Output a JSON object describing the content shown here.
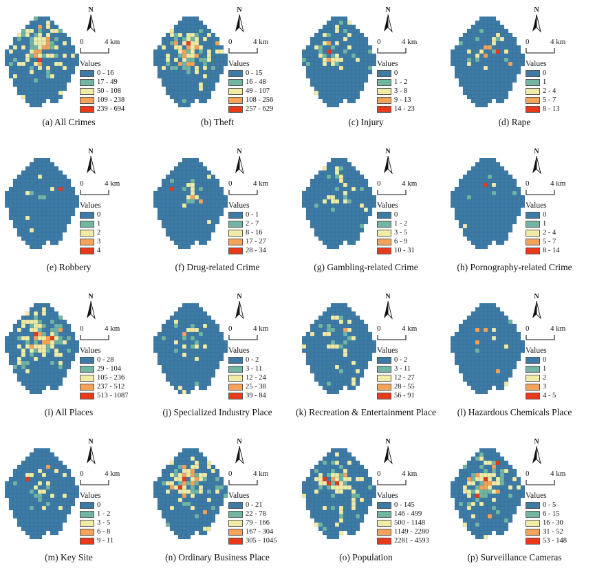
{
  "figure": {
    "legend_title": "Values",
    "north_label": "N",
    "scale": {
      "start": "0",
      "end": "4 km"
    },
    "colors": {
      "classes": [
        "#3d7aa5",
        "#72b5a3",
        "#f0eca5",
        "#f5a358",
        "#e8391b"
      ],
      "grid_line": "#245a82",
      "text": "#111111"
    }
  },
  "panels": [
    {
      "id": "a",
      "caption": "(a) All Crimes",
      "legend": [
        "0 - 16",
        "17 - 49",
        "50 - 108",
        "109 - 238",
        "239 - 694"
      ],
      "pattern": {
        "seed": 101,
        "density": 0.95,
        "spread": 3.4,
        "scatter": 0.05
      }
    },
    {
      "id": "b",
      "caption": "(b) Theft",
      "legend": [
        "0 - 15",
        "16 - 48",
        "49 - 107",
        "108 - 256",
        "257 - 629"
      ],
      "pattern": {
        "seed": 102,
        "density": 0.95,
        "spread": 3.2,
        "scatter": 0.04
      }
    },
    {
      "id": "c",
      "caption": "(c) Injury",
      "legend": [
        "0",
        "1 - 2",
        "3 - 8",
        "9 - 13",
        "14 - 23"
      ],
      "pattern": {
        "seed": 103,
        "density": 0.5,
        "spread": 3.0,
        "scatter": 0.03
      }
    },
    {
      "id": "d",
      "caption": "(d) Rape",
      "legend": [
        "0",
        "1",
        "2 - 4",
        "5 - 7",
        "8 - 13"
      ],
      "pattern": {
        "seed": 104,
        "density": 0.45,
        "spread": 2.6,
        "scatter": 0.015
      }
    },
    {
      "id": "e",
      "caption": "(e) Robbery",
      "legend": [
        "0",
        "1",
        "2",
        "3",
        "4"
      ],
      "pattern": {
        "seed": 105,
        "density": 0.1,
        "spread": 2.6,
        "scatter": 0.012
      }
    },
    {
      "id": "f",
      "caption": "(f) Drug-related Crime",
      "legend": [
        "0 - 1",
        "2 - 7",
        "8 - 16",
        "17 - 27",
        "28 - 34"
      ],
      "pattern": {
        "seed": 106,
        "density": 0.5,
        "spread": 2.0,
        "scatter": 0.02
      }
    },
    {
      "id": "g",
      "caption": "(g) Gambling-related Crime",
      "legend": [
        "0",
        "1 - 2",
        "3 - 5",
        "6 - 9",
        "10 - 31"
      ],
      "pattern": {
        "seed": 107,
        "density": 0.4,
        "spread": 2.6,
        "scatter": 0.025
      }
    },
    {
      "id": "h",
      "caption": "(h) Pornography-related Crime",
      "legend": [
        "0",
        "1",
        "2 - 4",
        "5 - 7",
        "8 - 14"
      ],
      "pattern": {
        "seed": 108,
        "density": 0.3,
        "spread": 1.8,
        "scatter": 0.012
      }
    },
    {
      "id": "i",
      "caption": "(i) All Places",
      "legend": [
        "0 - 28",
        "29 - 104",
        "105 - 236",
        "237 - 512",
        "513 - 1087"
      ],
      "pattern": {
        "seed": 109,
        "density": 0.9,
        "spread": 3.4,
        "scatter": 0.05
      }
    },
    {
      "id": "j",
      "caption": "(j) Specialized Industry Place",
      "legend": [
        "0 - 2",
        "3 - 11",
        "12 - 24",
        "25 - 38",
        "39 - 84"
      ],
      "pattern": {
        "seed": 110,
        "density": 0.6,
        "spread": 2.2,
        "scatter": 0.03
      }
    },
    {
      "id": "k",
      "caption": "(k) Recreation & Entertainment Place",
      "legend": [
        "0 - 2",
        "3 - 11",
        "12 - 27",
        "28 - 55",
        "56 - 91"
      ],
      "pattern": {
        "seed": 111,
        "density": 0.5,
        "spread": 2.4,
        "scatter": 0.03
      }
    },
    {
      "id": "l",
      "caption": "(l) Hazardous Chemicals Place",
      "legend": [
        "0",
        "1",
        "2",
        "3",
        "4 - 5"
      ],
      "pattern": {
        "seed": 112,
        "density": 0.06,
        "spread": 4.0,
        "scatter": 0.03
      }
    },
    {
      "id": "m",
      "caption": "(m) Key Site",
      "legend": [
        "0",
        "1 - 2",
        "3 - 5",
        "6 - 8",
        "9 - 11"
      ],
      "pattern": {
        "seed": 113,
        "density": 0.25,
        "spread": 3.0,
        "scatter": 0.02
      }
    },
    {
      "id": "n",
      "caption": "(n) Ordinary Business Place",
      "legend": [
        "0 - 21",
        "22 - 78",
        "79 - 166",
        "167 - 304",
        "305 - 1045"
      ],
      "pattern": {
        "seed": 114,
        "density": 0.85,
        "spread": 3.0,
        "scatter": 0.05
      }
    },
    {
      "id": "o",
      "caption": "(o) Population",
      "legend": [
        "0 - 145",
        "146 - 499",
        "500 - 1148",
        "1149 - 2280",
        "2281 - 4593"
      ],
      "pattern": {
        "seed": 115,
        "density": 0.95,
        "spread": 2.6,
        "scatter": 0.1
      }
    },
    {
      "id": "p",
      "caption": "(p) Surveillance Cameras",
      "legend": [
        "0 - 5",
        "6 - 15",
        "16 - 30",
        "31 - 52",
        "53 - 148"
      ],
      "pattern": {
        "seed": 116,
        "density": 0.9,
        "spread": 3.0,
        "scatter": 0.07
      }
    }
  ]
}
